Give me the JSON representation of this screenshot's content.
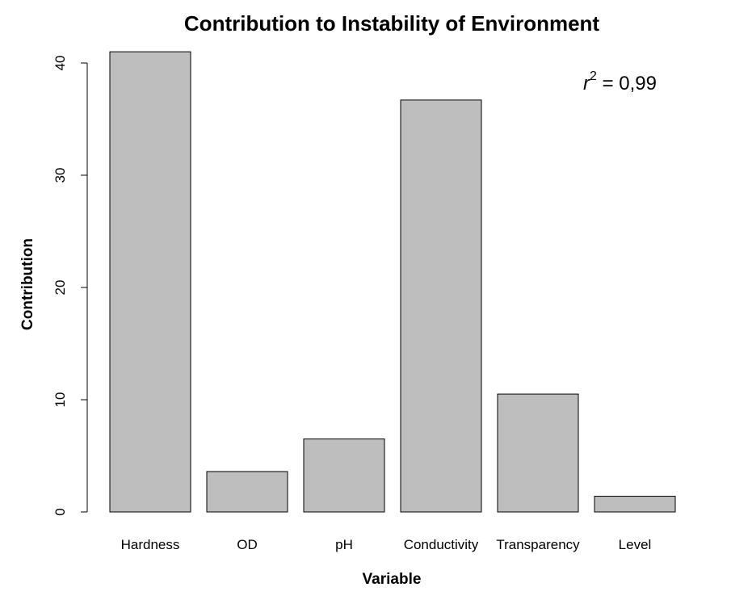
{
  "chart_data": {
    "type": "bar",
    "title": "Contribution to Instability of Environment",
    "xlabel": "Variable",
    "ylabel": "Contribution",
    "categories": [
      "Hardness",
      "OD",
      "pH",
      "Conductivity",
      "Transparency",
      "Level"
    ],
    "values": [
      41.0,
      3.6,
      6.5,
      36.7,
      10.5,
      1.4
    ],
    "ylim": [
      0,
      41
    ],
    "yticks": [
      "0",
      "10",
      "20",
      "30",
      "40"
    ],
    "annotation": {
      "variable": "r",
      "exponent": "2",
      "equals": " = 0,99"
    },
    "bar_color": "#bebebe",
    "grid": false,
    "legend": "none"
  }
}
